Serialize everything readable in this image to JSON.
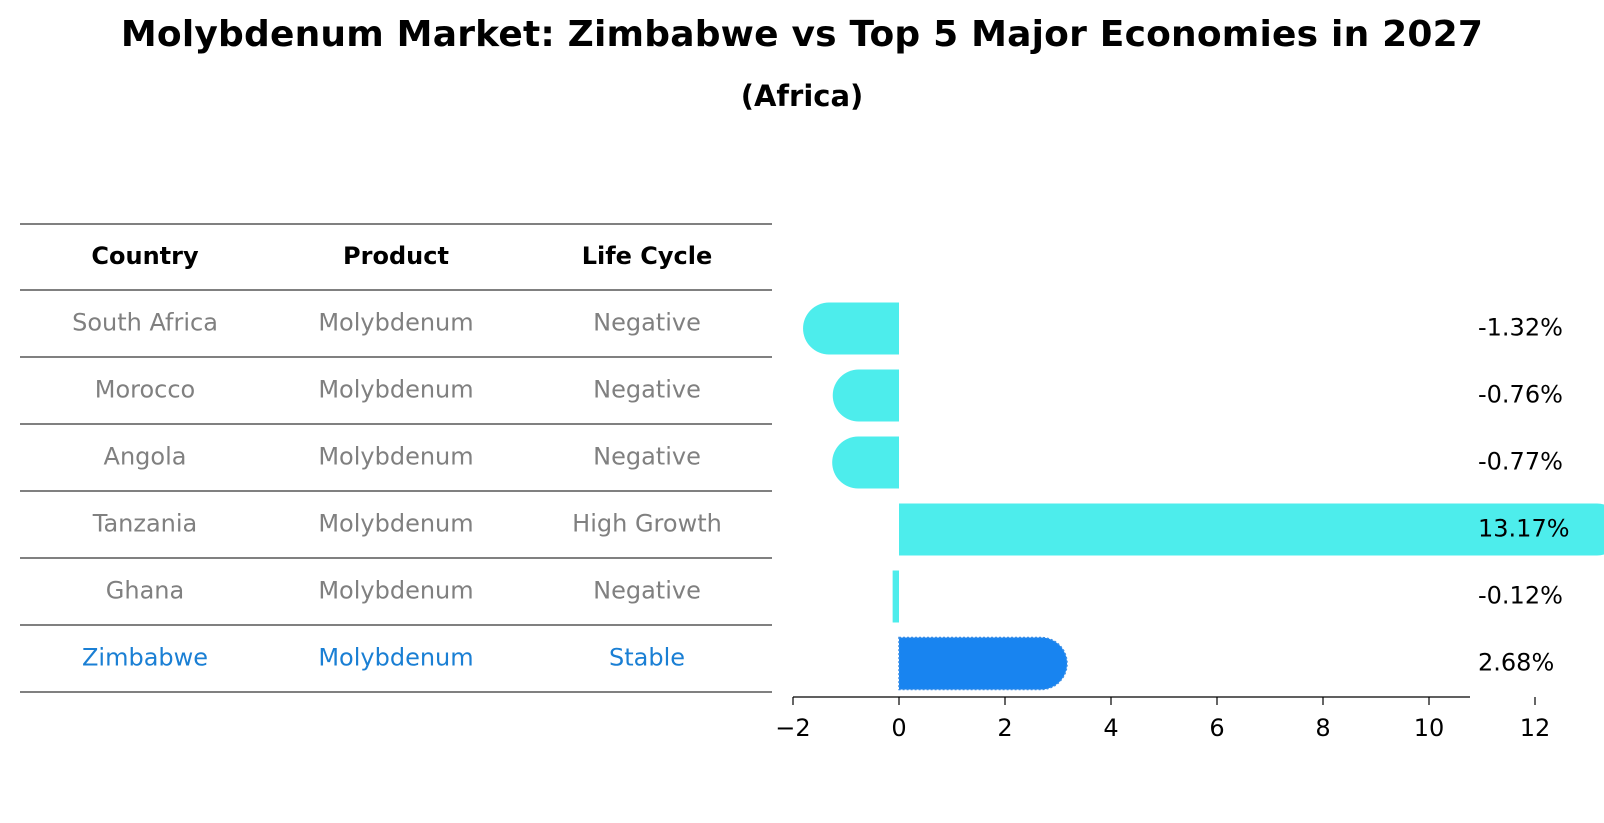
{
  "chart_data": {
    "type": "bar",
    "orientation": "horizontal",
    "title": "Molybdenum Market: Zimbabwe vs Top 5 Major Economies in 2027",
    "subtitle": "(Africa)",
    "table": {
      "headers": [
        "Country",
        "Product",
        "Life Cycle"
      ],
      "rows": [
        {
          "country": "South Africa",
          "product": "Molybdenum",
          "life_cycle": "Negative",
          "highlight": false
        },
        {
          "country": "Morocco",
          "product": "Molybdenum",
          "life_cycle": "Negative",
          "highlight": false
        },
        {
          "country": "Angola",
          "product": "Molybdenum",
          "life_cycle": "Negative",
          "highlight": false
        },
        {
          "country": "Tanzania",
          "product": "Molybdenum",
          "life_cycle": "High Growth",
          "highlight": false
        },
        {
          "country": "Ghana",
          "product": "Molybdenum",
          "life_cycle": "Negative",
          "highlight": false
        },
        {
          "country": "Zimbabwe",
          "product": "Molybdenum",
          "life_cycle": "Stable",
          "highlight": true
        }
      ]
    },
    "categories": [
      "South Africa",
      "Morocco",
      "Angola",
      "Tanzania",
      "Ghana",
      "Zimbabwe"
    ],
    "values": [
      -1.32,
      -0.76,
      -0.77,
      13.17,
      -0.12,
      2.68
    ],
    "value_labels": [
      "-1.32%",
      "-0.76%",
      "-0.77%",
      "13.17%",
      "-0.12%",
      "2.68%"
    ],
    "xlim": [
      -2,
      14
    ],
    "xticks": [
      -2,
      0,
      2,
      4,
      6,
      8,
      10,
      12
    ],
    "xtick_labels": [
      "−2",
      "0",
      "2",
      "4",
      "6",
      "8",
      "10",
      "12"
    ],
    "grid": false
  },
  "colors": {
    "bar": "#4dedec",
    "highlight_bar": "#1884f0",
    "highlight_text": "#1a7fd4",
    "table_text": "#808080",
    "header_text": "#000000",
    "rule": "#000000",
    "label_text": "#000000"
  }
}
